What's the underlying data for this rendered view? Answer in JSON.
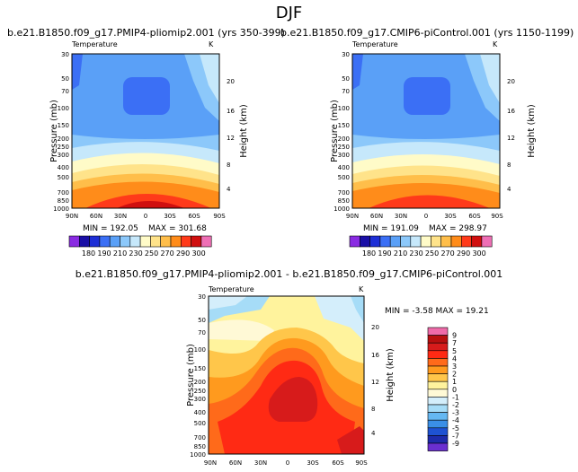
{
  "figure_title": "DJF",
  "chart_data": [
    {
      "type": "heatmap",
      "title": "b.e21.B1850.f09_g17.PMIP4-pliomip2.001 (yrs 350-399)",
      "subtitle": "Temperature",
      "units": "K",
      "xlabel": "",
      "ylabel": "Pressure (mb)",
      "y2label": "Height (km)",
      "x_ticks": [
        "90N",
        "60N",
        "30N",
        "0",
        "30S",
        "60S",
        "90S"
      ],
      "y_ticks": [
        "30",
        "50",
        "70",
        "100",
        "150",
        "200",
        "250",
        "300",
        "400",
        "500",
        "700",
        "850",
        "1000"
      ],
      "y2_ticks": [
        "20",
        "16",
        "12",
        "8",
        "4"
      ],
      "min_label": "MIN = 192.05",
      "max_label": "MAX = 301.68",
      "min": 192.05,
      "max": 301.68,
      "colorbar_labels": [
        "180",
        "190",
        "210",
        "230",
        "250",
        "270",
        "290",
        "300"
      ]
    },
    {
      "type": "heatmap",
      "title": "b.e21.B1850.f09_g17.CMIP6-piControl.001 (yrs 1150-1199)",
      "subtitle": "Temperature",
      "units": "K",
      "xlabel": "",
      "ylabel": "Pressure (mb)",
      "y2label": "Height (km)",
      "x_ticks": [
        "90N",
        "60N",
        "30N",
        "0",
        "30S",
        "60S",
        "90S"
      ],
      "y_ticks": [
        "30",
        "50",
        "70",
        "100",
        "150",
        "200",
        "250",
        "300",
        "400",
        "500",
        "700",
        "850",
        "1000"
      ],
      "y2_ticks": [
        "20",
        "16",
        "12",
        "8",
        "4"
      ],
      "min_label": "MIN = 191.09",
      "max_label": "MAX = 298.97",
      "min": 191.09,
      "max": 298.97,
      "colorbar_labels": [
        "180",
        "190",
        "210",
        "230",
        "250",
        "270",
        "290",
        "300"
      ]
    },
    {
      "type": "heatmap",
      "title": "b.e21.B1850.f09_g17.PMIP4-pliomip2.001 - b.e21.B1850.f09_g17.CMIP6-piControl.001",
      "subtitle": "Temperature",
      "units": "K",
      "xlabel": "",
      "ylabel": "Pressure (mb)",
      "y2label": "Height (km)",
      "x_ticks": [
        "90N",
        "60N",
        "30N",
        "0",
        "30S",
        "60S",
        "90S"
      ],
      "y_ticks": [
        "30",
        "50",
        "70",
        "100",
        "150",
        "200",
        "250",
        "300",
        "400",
        "500",
        "700",
        "850",
        "1000"
      ],
      "y2_ticks": [
        "20",
        "16",
        "12",
        "8",
        "4"
      ],
      "minmax_label": "MIN =   -3.58    MAX =  19.21",
      "min": -3.58,
      "max": 19.21,
      "colorbar_labels": [
        "9",
        "7",
        "5",
        "4",
        "3",
        "2",
        "1",
        "0",
        "-1",
        "-2",
        "-3",
        "-4",
        "-5",
        "-7",
        "-9"
      ]
    }
  ],
  "colors": {
    "abs_scale": [
      "#8a2be2",
      "#1a0fa6",
      "#1e2fd6",
      "#3b6ff5",
      "#5aa0f7",
      "#8cc8fa",
      "#c6e8fb",
      "#fffbc8",
      "#ffe38a",
      "#ffbe4a",
      "#ff8c1a",
      "#ff3a1a",
      "#d00f0f",
      "#ee6fb5"
    ],
    "diff_scale": [
      "#ef6aa9",
      "#b80f0f",
      "#d71b1b",
      "#ff2a14",
      "#ff6a1a",
      "#ff9a1e",
      "#ffc64a",
      "#fff39d",
      "#fff9d6",
      "#d4eefb",
      "#a6dcf7",
      "#65b8f2",
      "#3a8fe6",
      "#1e52d2",
      "#1d2bab",
      "#6a2fd0"
    ]
  }
}
